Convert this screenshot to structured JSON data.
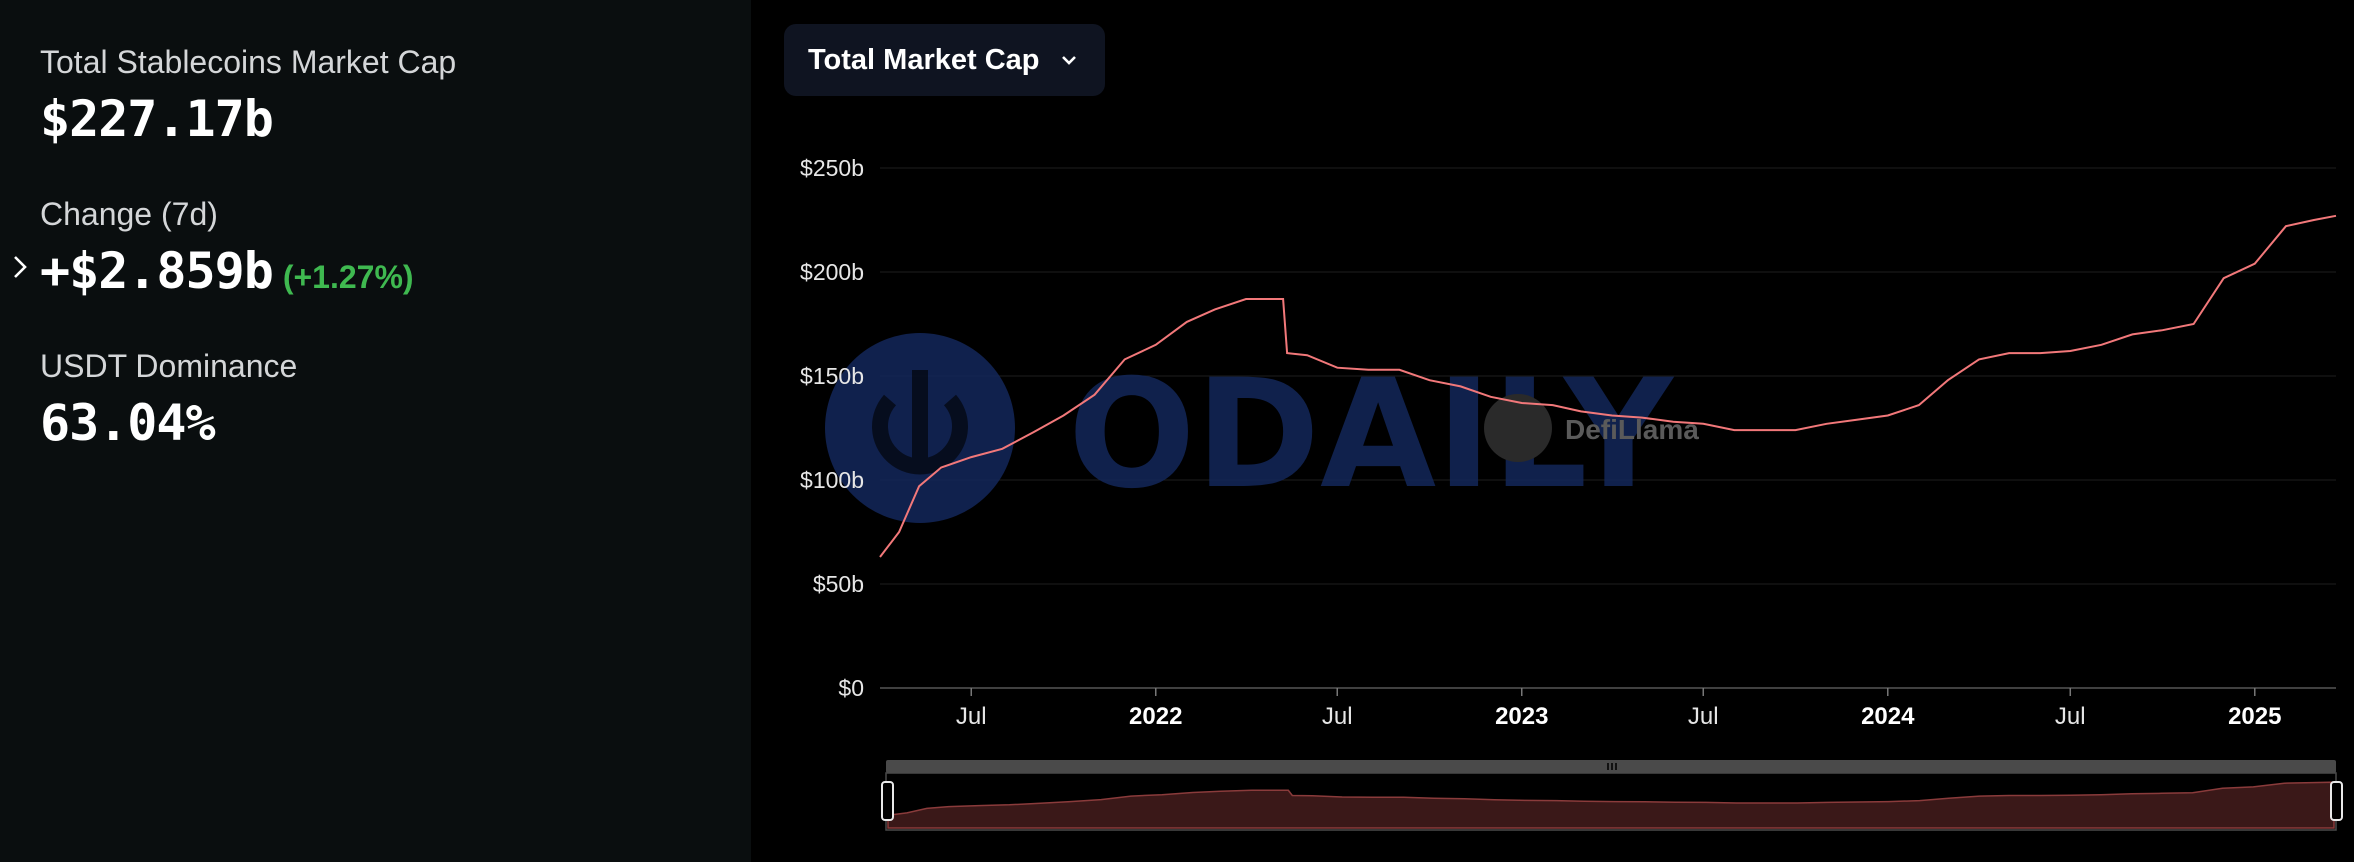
{
  "stats": {
    "total_label": "Total Stablecoins Market Cap",
    "total_value": "$227.17b",
    "change_label": "Change (7d)",
    "change_value": "+$2.859b",
    "change_pct": "(+1.27%)",
    "dominance_label": "USDT Dominance",
    "dominance_value": "63.04%"
  },
  "dropdown": {
    "label": "Total Market Cap"
  },
  "watermarks": {
    "primary": "ODAILY",
    "secondary": "DefiLlama"
  },
  "colors": {
    "line": "#f2787a",
    "positive": "#3fb950",
    "watermark": "#13275a"
  },
  "chart_data": {
    "type": "line",
    "title": "",
    "xlabel": "",
    "ylabel": "",
    "ylim": [
      0,
      250
    ],
    "yticks": [
      {
        "v": 0,
        "label": "$0"
      },
      {
        "v": 50,
        "label": "$50b"
      },
      {
        "v": 100,
        "label": "$100b"
      },
      {
        "v": 150,
        "label": "$150b"
      },
      {
        "v": 200,
        "label": "$200b"
      },
      {
        "v": 250,
        "label": "$250b"
      }
    ],
    "xticks": [
      {
        "date": "2021-07-01",
        "label": "Jul",
        "major": false
      },
      {
        "date": "2022-01-01",
        "label": "2022",
        "major": true
      },
      {
        "date": "2022-07-01",
        "label": "Jul",
        "major": false
      },
      {
        "date": "2023-01-01",
        "label": "2023",
        "major": true
      },
      {
        "date": "2023-07-01",
        "label": "Jul",
        "major": false
      },
      {
        "date": "2024-01-01",
        "label": "2024",
        "major": true
      },
      {
        "date": "2024-07-01",
        "label": "Jul",
        "major": false
      },
      {
        "date": "2025-01-01",
        "label": "2025",
        "major": true
      }
    ],
    "grid": true,
    "series": [
      {
        "points": [
          [
            "2021-04-01",
            63
          ],
          [
            "2021-04-20",
            75
          ],
          [
            "2021-05-10",
            97
          ],
          [
            "2021-06-01",
            106
          ],
          [
            "2021-07-01",
            111
          ],
          [
            "2021-08-01",
            115
          ],
          [
            "2021-09-01",
            123
          ],
          [
            "2021-10-01",
            131
          ],
          [
            "2021-11-01",
            141
          ],
          [
            "2021-12-01",
            158
          ],
          [
            "2022-01-01",
            165
          ],
          [
            "2022-02-01",
            176
          ],
          [
            "2022-03-01",
            182
          ],
          [
            "2022-04-01",
            187
          ],
          [
            "2022-05-08",
            187
          ],
          [
            "2022-05-12",
            161
          ],
          [
            "2022-06-01",
            160
          ],
          [
            "2022-07-01",
            154
          ],
          [
            "2022-08-01",
            153
          ],
          [
            "2022-09-01",
            153
          ],
          [
            "2022-10-01",
            148
          ],
          [
            "2022-11-01",
            145
          ],
          [
            "2022-12-01",
            140
          ],
          [
            "2023-01-01",
            137
          ],
          [
            "2023-02-01",
            136
          ],
          [
            "2023-03-01",
            133
          ],
          [
            "2023-04-01",
            131
          ],
          [
            "2023-05-01",
            130
          ],
          [
            "2023-06-01",
            128
          ],
          [
            "2023-07-01",
            127
          ],
          [
            "2023-08-01",
            124
          ],
          [
            "2023-09-01",
            124
          ],
          [
            "2023-10-01",
            124
          ],
          [
            "2023-11-01",
            127
          ],
          [
            "2023-12-01",
            129
          ],
          [
            "2024-01-01",
            131
          ],
          [
            "2024-02-01",
            136
          ],
          [
            "2024-03-01",
            148
          ],
          [
            "2024-04-01",
            158
          ],
          [
            "2024-05-01",
            161
          ],
          [
            "2024-06-01",
            161
          ],
          [
            "2024-07-01",
            162
          ],
          [
            "2024-08-01",
            165
          ],
          [
            "2024-09-01",
            170
          ],
          [
            "2024-10-01",
            172
          ],
          [
            "2024-11-01",
            175
          ],
          [
            "2024-12-01",
            197
          ],
          [
            "2025-01-01",
            204
          ],
          [
            "2025-02-01",
            222
          ],
          [
            "2025-03-01",
            225
          ],
          [
            "2025-03-23",
            227
          ]
        ]
      }
    ]
  }
}
